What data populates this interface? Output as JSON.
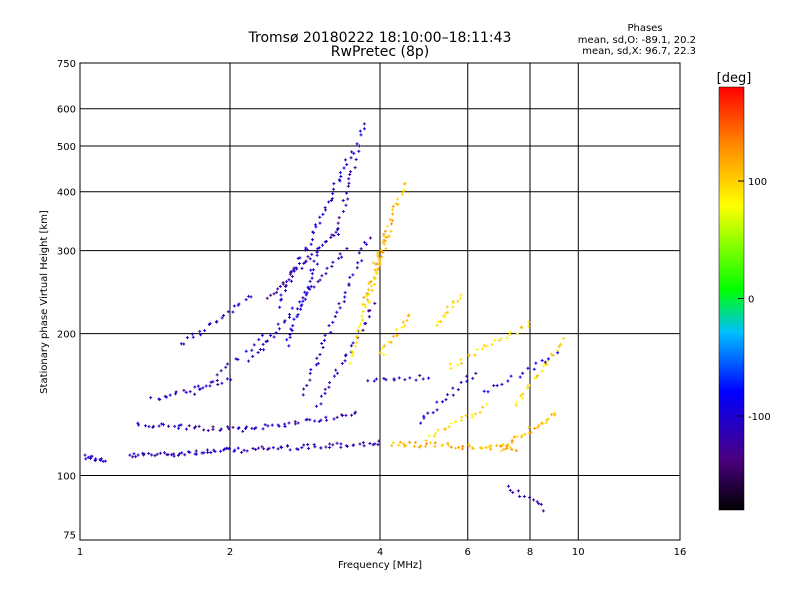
{
  "chart_data": {
    "type": "scatter",
    "title": "Tromsø 20180222 18:10:00–18:11:43",
    "subtitle": "RwPretec (8p)",
    "xlabel": "Frequency [MHz]",
    "ylabel": "Stationary phase Virtual Height [km]",
    "x_scale": "log",
    "y_scale": "log",
    "xlim": [
      1,
      16
    ],
    "ylim": [
      73,
      750
    ],
    "x_ticks": [
      1,
      2,
      4,
      6,
      8,
      10,
      16
    ],
    "x_tick_labels": [
      "1",
      "2",
      "4",
      "6",
      "8",
      "10",
      "16"
    ],
    "y_ticks": [
      75,
      100,
      200,
      300,
      400,
      500,
      600,
      750
    ],
    "y_tick_labels": [
      "75",
      "100",
      "200",
      "300",
      "400",
      "500",
      "600",
      "750"
    ],
    "grid": true,
    "stats": {
      "heading": "Phases",
      "line_o": "mean, sd,O: -89.1, 20.2",
      "line_x": "mean, sd,X:  96.7, 22.3"
    },
    "colorbar": {
      "label": "[deg]",
      "range": [
        -180,
        180
      ],
      "ticks": [
        100,
        0,
        -100
      ],
      "tick_labels": [
        "100",
        "0",
        "-100"
      ],
      "colormap": [
        "#000000",
        "#4b0082",
        "#0000ff",
        "#00bfff",
        "#00ff00",
        "#ffff00",
        "#ff8c00",
        "#ff0000"
      ]
    },
    "series": [
      {
        "traces": [
          {
            "f_start": 1.02,
            "f_end": 1.12,
            "h_start": 110,
            "h_end": 107,
            "phase": -105,
            "n": 14
          },
          {
            "f_start": 1.25,
            "f_end": 2.0,
            "h_start": 110,
            "h_end": 113,
            "phase": -110,
            "n": 40
          },
          {
            "f_start": 2.0,
            "f_end": 4.0,
            "h_start": 113,
            "h_end": 117,
            "phase": -115,
            "n": 50
          },
          {
            "f_start": 1.3,
            "f_end": 2.1,
            "h_start": 128,
            "h_end": 125,
            "phase": -115,
            "n": 30
          },
          {
            "f_start": 2.1,
            "f_end": 3.6,
            "h_start": 125,
            "h_end": 135,
            "phase": -110,
            "n": 34
          },
          {
            "f_start": 1.4,
            "f_end": 2.0,
            "h_start": 145,
            "h_end": 160,
            "phase": -110,
            "n": 22
          },
          {
            "f_start": 1.6,
            "f_end": 2.2,
            "h_start": 190,
            "h_end": 240,
            "phase": -115,
            "n": 22
          },
          {
            "f_start": 2.2,
            "f_end": 3.4,
            "h_start": 175,
            "h_end": 300,
            "phase": -110,
            "n": 36
          },
          {
            "f_start": 2.4,
            "f_end": 3.3,
            "h_start": 240,
            "h_end": 330,
            "phase": -115,
            "n": 34
          },
          {
            "f_start": 2.5,
            "f_end": 3.5,
            "h_start": 230,
            "h_end": 480,
            "phase": -100,
            "n": 44
          },
          {
            "f_start": 2.6,
            "f_end": 3.0,
            "h_start": 190,
            "h_end": 290,
            "phase": -95,
            "n": 26
          },
          {
            "f_start": 2.8,
            "f_end": 3.8,
            "h_start": 150,
            "h_end": 320,
            "phase": -105,
            "n": 36
          },
          {
            "f_start": 3.0,
            "f_end": 3.9,
            "h_start": 140,
            "h_end": 230,
            "phase": -115,
            "n": 26
          },
          {
            "f_start": 3.3,
            "f_end": 3.7,
            "h_start": 330,
            "h_end": 560,
            "phase": -110,
            "n": 24
          },
          {
            "f_start": 3.5,
            "f_end": 4.0,
            "h_start": 175,
            "h_end": 290,
            "phase": 90,
            "n": 30
          },
          {
            "f_start": 3.7,
            "f_end": 4.2,
            "h_start": 230,
            "h_end": 330,
            "phase": 110,
            "n": 28
          },
          {
            "f_start": 3.9,
            "f_end": 4.5,
            "h_start": 280,
            "h_end": 420,
            "phase": 110,
            "n": 26
          },
          {
            "f_start": 4.0,
            "f_end": 4.6,
            "h_start": 180,
            "h_end": 220,
            "phase": 100,
            "n": 16
          },
          {
            "f_start": 4.2,
            "f_end": 7.5,
            "h_start": 117,
            "h_end": 114,
            "phase": 115,
            "n": 44
          },
          {
            "f_start": 5.0,
            "f_end": 6.5,
            "h_start": 120,
            "h_end": 140,
            "phase": 95,
            "n": 20
          },
          {
            "f_start": 5.2,
            "f_end": 5.8,
            "h_start": 210,
            "h_end": 240,
            "phase": 90,
            "n": 14
          },
          {
            "f_start": 5.5,
            "f_end": 8.0,
            "h_start": 170,
            "h_end": 210,
            "phase": 95,
            "n": 24
          },
          {
            "f_start": 7.0,
            "f_end": 9.0,
            "h_start": 114,
            "h_end": 135,
            "phase": 110,
            "n": 26
          },
          {
            "f_start": 7.5,
            "f_end": 9.3,
            "h_start": 140,
            "h_end": 195,
            "phase": 95,
            "n": 22
          },
          {
            "f_start": 3.8,
            "f_end": 5.0,
            "h_start": 158,
            "h_end": 162,
            "phase": -110,
            "n": 14
          },
          {
            "f_start": 4.8,
            "f_end": 6.2,
            "h_start": 130,
            "h_end": 165,
            "phase": -110,
            "n": 18
          },
          {
            "f_start": 6.5,
            "f_end": 9.0,
            "h_start": 150,
            "h_end": 180,
            "phase": -100,
            "n": 16
          },
          {
            "f_start": 7.2,
            "f_end": 8.6,
            "h_start": 95,
            "h_end": 85,
            "phase": -115,
            "n": 12
          },
          {
            "f_start": 1.7,
            "f_end": 2.4,
            "h_start": 150,
            "h_end": 200,
            "phase": -105,
            "n": 16
          }
        ]
      }
    ]
  }
}
